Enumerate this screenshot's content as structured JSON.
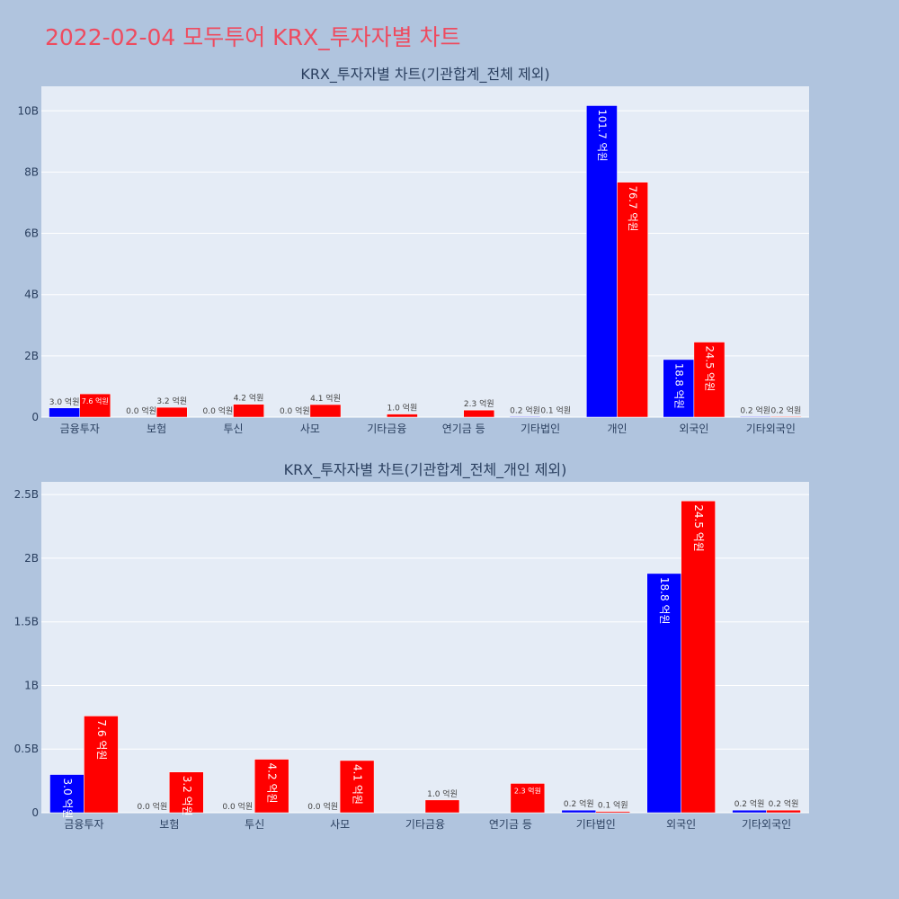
{
  "title": "2022-02-04 모두투어 KRX_투자자별 차트",
  "colors": {
    "buy": "#0000ff",
    "sell": "#ff0000",
    "background": "#b0c4de",
    "plot_bg": "#e5ecf6",
    "title": "#ee4b5f"
  },
  "chart_data": [
    {
      "type": "bar",
      "title": "KRX_투자자별 차트(기관합계_전체 제외)",
      "categories": [
        "금융투자",
        "보험",
        "투신",
        "사모",
        "기타금융",
        "연기금 등",
        "기타법인",
        "개인",
        "외국인",
        "기타외국인"
      ],
      "yticks": [
        0,
        2,
        4,
        6,
        8,
        10
      ],
      "ytick_labels": [
        "0",
        "2B",
        "4B",
        "6B",
        "8B",
        "10B"
      ],
      "ylim": [
        0,
        10.8
      ],
      "unit": "B",
      "grid": true,
      "series": [
        {
          "color": "#0000ff",
          "values": [
            0.3,
            0.0,
            0.0,
            0.0,
            0.0,
            0.0,
            0.02,
            10.17,
            1.88,
            0.02
          ],
          "labels": [
            "3.0 억원",
            "0.0 억원",
            "0.0 억원",
            "0.0 억원",
            "",
            "",
            "0.2 억원",
            "101.7 억원",
            "18.8 억원",
            "0.2 억원"
          ]
        },
        {
          "color": "#ff0000",
          "values": [
            0.76,
            0.32,
            0.42,
            0.41,
            0.1,
            0.23,
            0.01,
            7.67,
            2.45,
            0.02
          ],
          "labels": [
            "7.6 억원",
            "3.2 억원",
            "4.2 억원",
            "4.1 억원",
            "1.0 억원",
            "2.3 억원",
            "0.1 억원",
            "76.7 억원",
            "24.5 억원",
            "0.2 억원"
          ]
        }
      ]
    },
    {
      "type": "bar",
      "title": "KRX_투자자별 차트(기관합계_전체_개인 제외)",
      "categories": [
        "금융투자",
        "보험",
        "투신",
        "사모",
        "기타금융",
        "연기금 등",
        "기타법인",
        "외국인",
        "기타외국인"
      ],
      "yticks": [
        0,
        0.5,
        1,
        1.5,
        2,
        2.5
      ],
      "ytick_labels": [
        "0",
        "0.5B",
        "1B",
        "1.5B",
        "2B",
        "2.5B"
      ],
      "ylim": [
        0,
        2.6
      ],
      "unit": "B",
      "grid": true,
      "series": [
        {
          "color": "#0000ff",
          "values": [
            0.3,
            0.0,
            0.0,
            0.0,
            0.0,
            0.0,
            0.02,
            1.88,
            0.02
          ],
          "labels": [
            "3.0 억원",
            "0.0 억원",
            "0.0 억원",
            "0.0 억원",
            "",
            "",
            "0.2 억원",
            "18.8 억원",
            "0.2 억원"
          ]
        },
        {
          "color": "#ff0000",
          "values": [
            0.76,
            0.32,
            0.42,
            0.41,
            0.1,
            0.23,
            0.01,
            2.45,
            0.02
          ],
          "labels": [
            "7.6 억원",
            "3.2 억원",
            "4.2 억원",
            "4.1 억원",
            "1.0 억원",
            "2.3 억원",
            "0.1 억원",
            "24.5 억원",
            "0.2 억원"
          ]
        }
      ]
    }
  ]
}
